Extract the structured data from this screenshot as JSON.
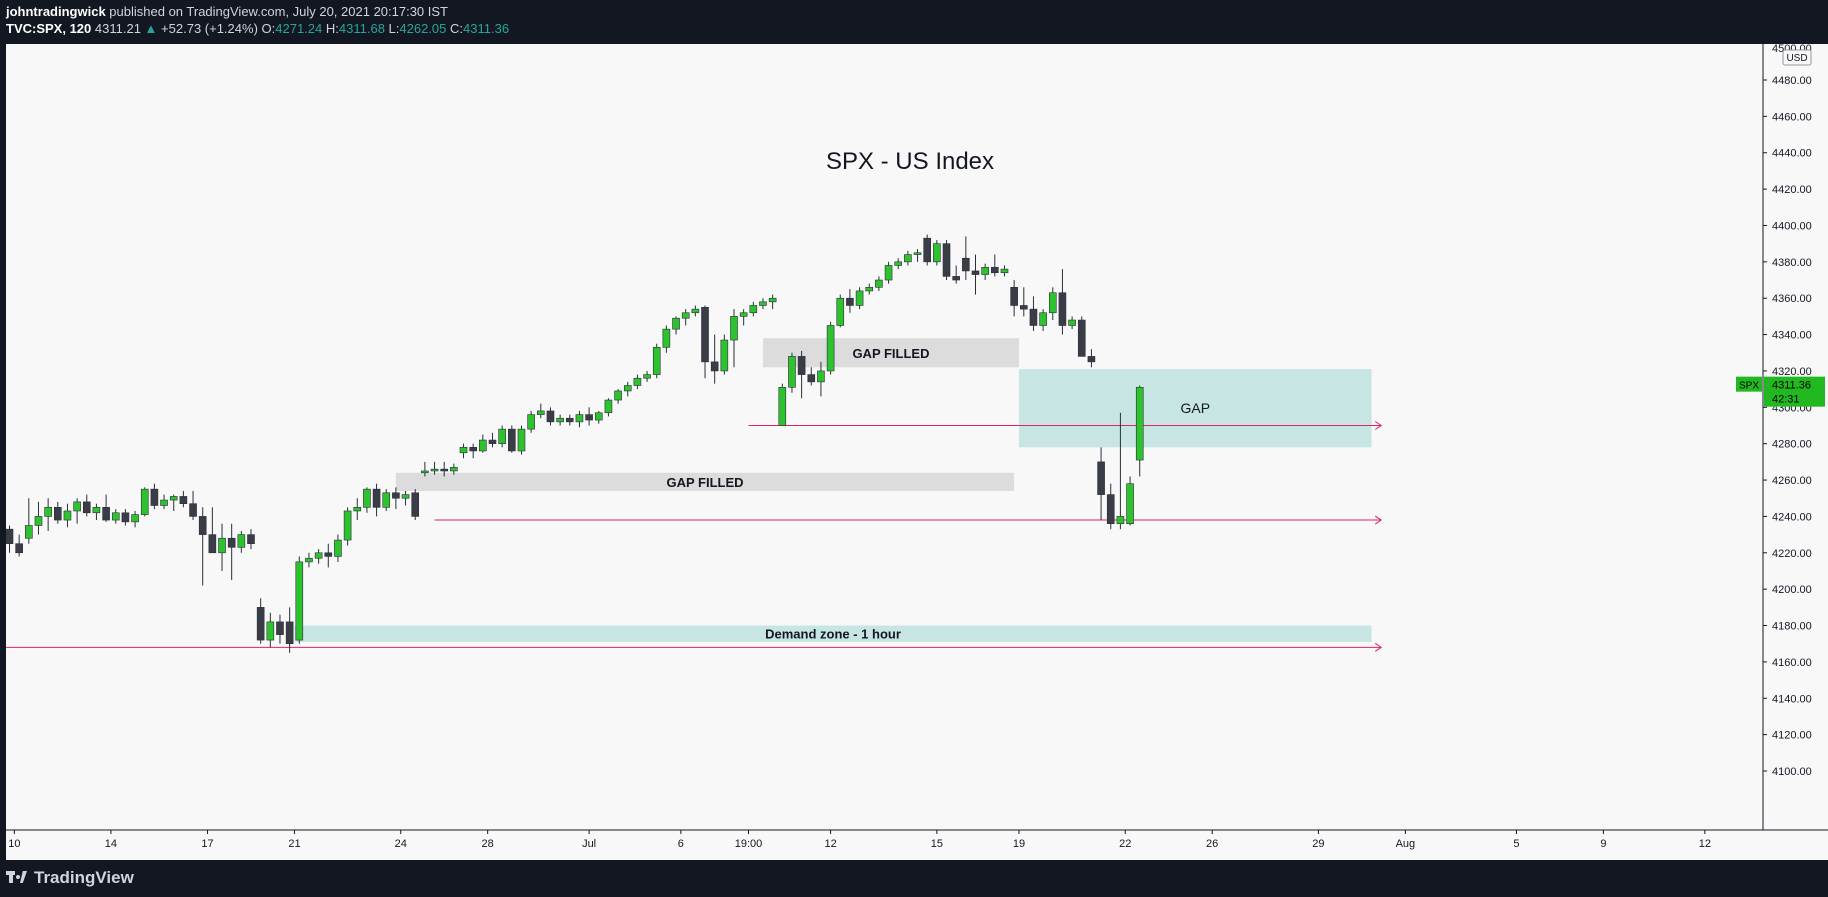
{
  "header": {
    "author": "johntradingwick",
    "published": "published on TradingView.com, July 20, 2021 20:17:30 IST",
    "symbol": "TVC:SPX, 120",
    "last": "4311.21",
    "change": "+52.73 (+1.24%)",
    "o_label": "O:",
    "o_value": "4271.24",
    "h_label": "H:",
    "h_value": "4311.68",
    "l_label": "L:",
    "l_value": "4262.05",
    "c_label": "C:",
    "c_value": "4311.36"
  },
  "footer": {
    "brand": "TradingView"
  },
  "colors": {
    "bull": "#2fc22f",
    "bear": "#3a3d46",
    "gap_fill": "#dcdcdc",
    "zone": "#c7e5e2",
    "ray": "#e0245e",
    "price_tag": "#22b81f"
  },
  "chart_data": {
    "type": "candlestick",
    "title": "SPX - US Index",
    "currency": "USD",
    "ylim": [
      4090,
      4500
    ],
    "y_ticks": [
      4100,
      4120,
      4140,
      4160,
      4180,
      4200,
      4220,
      4240,
      4260,
      4280,
      4300,
      4320,
      4340,
      4360,
      4380,
      4400,
      4420,
      4440,
      4460,
      4480
    ],
    "top_tick_label": "4500.00",
    "x_index_range": [
      -0.5,
      179.5
    ],
    "x_ticks": [
      {
        "label": "10",
        "i": 0.5
      },
      {
        "label": "14",
        "i": 10.5
      },
      {
        "label": "17",
        "i": 20.5
      },
      {
        "label": "21",
        "i": 29.5
      },
      {
        "label": "24",
        "i": 40.5
      },
      {
        "label": "28",
        "i": 49.5
      },
      {
        "label": "Jul",
        "i": 60
      },
      {
        "label": "6",
        "i": 69.5
      },
      {
        "label": "19:00",
        "i": 76.5
      },
      {
        "label": "12",
        "i": 85
      },
      {
        "label": "15",
        "i": 96
      },
      {
        "label": "19",
        "i": 104.5
      },
      {
        "label": "22",
        "i": 115.5
      },
      {
        "label": "26",
        "i": 124.5
      },
      {
        "label": "29",
        "i": 135.5
      },
      {
        "label": "Aug",
        "i": 144.5
      },
      {
        "label": "5",
        "i": 156
      },
      {
        "label": "9",
        "i": 165
      },
      {
        "label": "12",
        "i": 175.5
      }
    ],
    "candles": [
      [
        4233,
        4235,
        4220,
        4225
      ],
      [
        4225,
        4230,
        4218,
        4220
      ],
      [
        4228,
        4250,
        4225,
        4235
      ],
      [
        4235,
        4248,
        4230,
        4240
      ],
      [
        4240,
        4250,
        4232,
        4245
      ],
      [
        4245,
        4248,
        4236,
        4238
      ],
      [
        4238,
        4247,
        4234,
        4243
      ],
      [
        4243,
        4250,
        4236,
        4248
      ],
      [
        4248,
        4252,
        4240,
        4242
      ],
      [
        4242,
        4247,
        4238,
        4245
      ],
      [
        4245,
        4252,
        4237,
        4238
      ],
      [
        4238,
        4244,
        4236,
        4242
      ],
      [
        4242,
        4244,
        4235,
        4237
      ],
      [
        4237,
        4243,
        4234,
        4241
      ],
      [
        4241,
        4256,
        4240,
        4255
      ],
      [
        4255,
        4258,
        4244,
        4246
      ],
      [
        4246,
        4252,
        4244,
        4249
      ],
      [
        4249,
        4252,
        4243,
        4251
      ],
      [
        4251,
        4254,
        4245,
        4247
      ],
      [
        4247,
        4254,
        4238,
        4240
      ],
      [
        4240,
        4245,
        4202,
        4230
      ],
      [
        4230,
        4245,
        4222,
        4220
      ],
      [
        4220,
        4236,
        4210,
        4228
      ],
      [
        4228,
        4236,
        4205,
        4223
      ],
      [
        4223,
        4232,
        4220,
        4230
      ],
      [
        4230,
        4233,
        4222,
        4225
      ],
      [
        4190,
        4195,
        4170,
        4172
      ],
      [
        4172,
        4187,
        4168,
        4182
      ],
      [
        4182,
        4186,
        4170,
        4175
      ],
      [
        4182,
        4190,
        4165,
        4170
      ],
      [
        4172,
        4218,
        4170,
        4215
      ],
      [
        4215,
        4220,
        4212,
        4217
      ],
      [
        4217,
        4222,
        4214,
        4220
      ],
      [
        4220,
        4225,
        4212,
        4218
      ],
      [
        4218,
        4230,
        4215,
        4227
      ],
      [
        4227,
        4245,
        4224,
        4243
      ],
      [
        4243,
        4250,
        4238,
        4245
      ],
      [
        4245,
        4256,
        4242,
        4255
      ],
      [
        4255,
        4258,
        4240,
        4245
      ],
      [
        4245,
        4255,
        4243,
        4253
      ],
      [
        4253,
        4256,
        4244,
        4250
      ],
      [
        4250,
        4254,
        4246,
        4252
      ],
      [
        4253,
        4255,
        4238,
        4240
      ],
      [
        4264,
        4270,
        4262,
        4265
      ],
      [
        4265,
        4270,
        4263,
        4266
      ],
      [
        4266,
        4270,
        4262,
        4265
      ],
      [
        4265,
        4269,
        4263,
        4267
      ],
      [
        4275,
        4280,
        4272,
        4278
      ],
      [
        4278,
        4280,
        4272,
        4276
      ],
      [
        4276,
        4285,
        4275,
        4282
      ],
      [
        4282,
        4286,
        4278,
        4280
      ],
      [
        4280,
        4290,
        4278,
        4288
      ],
      [
        4288,
        4290,
        4275,
        4276
      ],
      [
        4276,
        4290,
        4274,
        4288
      ],
      [
        4288,
        4298,
        4286,
        4296
      ],
      [
        4296,
        4302,
        4294,
        4298
      ],
      [
        4298,
        4300,
        4290,
        4292
      ],
      [
        4292,
        4296,
        4290,
        4294
      ],
      [
        4294,
        4296,
        4290,
        4292
      ],
      [
        4292,
        4298,
        4289,
        4296
      ],
      [
        4296,
        4300,
        4290,
        4293
      ],
      [
        4293,
        4298,
        4291,
        4297
      ],
      [
        4297,
        4305,
        4295,
        4304
      ],
      [
        4304,
        4310,
        4302,
        4309
      ],
      [
        4309,
        4314,
        4306,
        4312
      ],
      [
        4312,
        4318,
        4310,
        4316
      ],
      [
        4316,
        4320,
        4314,
        4318
      ],
      [
        4318,
        4335,
        4316,
        4333
      ],
      [
        4333,
        4345,
        4330,
        4343
      ],
      [
        4343,
        4350,
        4340,
        4349
      ],
      [
        4349,
        4354,
        4345,
        4352
      ],
      [
        4352,
        4356,
        4350,
        4354
      ],
      [
        4355,
        4356,
        4316,
        4325
      ],
      [
        4325,
        4340,
        4313,
        4320
      ],
      [
        4320,
        4340,
        4318,
        4337
      ],
      [
        4337,
        4354,
        4322,
        4350
      ],
      [
        4350,
        4354,
        4345,
        4352
      ],
      [
        4352,
        4358,
        4350,
        4356
      ],
      [
        4356,
        4360,
        4354,
        4358
      ],
      [
        4358,
        4362,
        4354,
        4360
      ],
      [
        4290,
        4313,
        4290,
        4311
      ],
      [
        4311,
        4330,
        4308,
        4328
      ],
      [
        4328,
        4331,
        4305,
        4318
      ],
      [
        4318,
        4322,
        4312,
        4314
      ],
      [
        4314,
        4325,
        4306,
        4320
      ],
      [
        4320,
        4347,
        4318,
        4345
      ],
      [
        4345,
        4362,
        4344,
        4360
      ],
      [
        4360,
        4365,
        4352,
        4356
      ],
      [
        4356,
        4366,
        4354,
        4364
      ],
      [
        4364,
        4368,
        4362,
        4366
      ],
      [
        4366,
        4372,
        4364,
        4370
      ],
      [
        4370,
        4380,
        4368,
        4378
      ],
      [
        4378,
        4382,
        4376,
        4380
      ],
      [
        4380,
        4386,
        4378,
        4384
      ],
      [
        4384,
        4387,
        4380,
        4385
      ],
      [
        4393,
        4395,
        4378,
        4380
      ],
      [
        4380,
        4392,
        4378,
        4390
      ],
      [
        4390,
        4392,
        4370,
        4372
      ],
      [
        4372,
        4378,
        4368,
        4370
      ],
      [
        4382,
        4394,
        4370,
        4375
      ],
      [
        4375,
        4384,
        4362,
        4373
      ],
      [
        4373,
        4379,
        4370,
        4377
      ],
      [
        4377,
        4384,
        4372,
        4374
      ],
      [
        4374,
        4378,
        4372,
        4376
      ],
      [
        4366,
        4370,
        4350,
        4356
      ],
      [
        4356,
        4366,
        4350,
        4354
      ],
      [
        4354,
        4361,
        4342,
        4345
      ],
      [
        4345,
        4354,
        4342,
        4352
      ],
      [
        4352,
        4366,
        4348,
        4363
      ],
      [
        4363,
        4376,
        4340,
        4345
      ],
      [
        4345,
        4350,
        4343,
        4348
      ],
      [
        4348,
        4350,
        4330,
        4328
      ],
      [
        4328,
        4332,
        4322,
        4325
      ],
      [
        4270,
        4278,
        4238,
        4252
      ],
      [
        4252,
        4258,
        4233,
        4236
      ],
      [
        4236,
        4297,
        4233,
        4240
      ],
      [
        4236,
        4262,
        4235,
        4258
      ],
      [
        4271,
        4312,
        4262,
        4311
      ]
    ],
    "candle_index_map": [
      0,
      1,
      2,
      3,
      4,
      5,
      6,
      7,
      8,
      9,
      10,
      11,
      12,
      13,
      14,
      15,
      16,
      17,
      18,
      19,
      20,
      21,
      22,
      23,
      24,
      25,
      26,
      27,
      28,
      29,
      30,
      31,
      32,
      33,
      34,
      35,
      36,
      37,
      38,
      39,
      40,
      41,
      42,
      43,
      44,
      45,
      46,
      47,
      48,
      49,
      50,
      51,
      52,
      53,
      54,
      55,
      56,
      57,
      58,
      59,
      60,
      61,
      62,
      63,
      64,
      65,
      66,
      67,
      68,
      69,
      70,
      71,
      72,
      73,
      74,
      75,
      76,
      77,
      78,
      79,
      80,
      81,
      82,
      83,
      84,
      85,
      86,
      87,
      88,
      89,
      90,
      91,
      92,
      93,
      94,
      95,
      96,
      97,
      98,
      99,
      100,
      101,
      102,
      103,
      104,
      105,
      106,
      107,
      108,
      109,
      110,
      111,
      112,
      113,
      114,
      115
    ],
    "annotations": {
      "gap_filled_upper": {
        "label": "GAP FILLED",
        "i0": 78,
        "i1": 104.5,
        "y0": 4322,
        "y1": 4338
      },
      "gap_filled_lower": {
        "label": "GAP FILLED",
        "i0": 40,
        "i1": 104,
        "y0": 4254,
        "y1": 4264
      },
      "gap": {
        "label": "GAP",
        "i0": 104.5,
        "i1": 141,
        "y0": 4278,
        "y1": 4321
      },
      "demand_zone": {
        "label": "Demand zone - 1 hour",
        "i0": 29.5,
        "i1": 141,
        "y0": 4171,
        "y1": 4180
      }
    },
    "rays": [
      {
        "i0": 76.5,
        "i1": 142,
        "y": 4290
      },
      {
        "i0": 44,
        "i1": 142,
        "y": 4238
      },
      {
        "i0": -0.6,
        "i1": 142,
        "y": 4168
      }
    ],
    "last_price": {
      "symbol": "SPX",
      "price": "4311.36",
      "countdown": "42:31",
      "y": 4311.36
    }
  }
}
